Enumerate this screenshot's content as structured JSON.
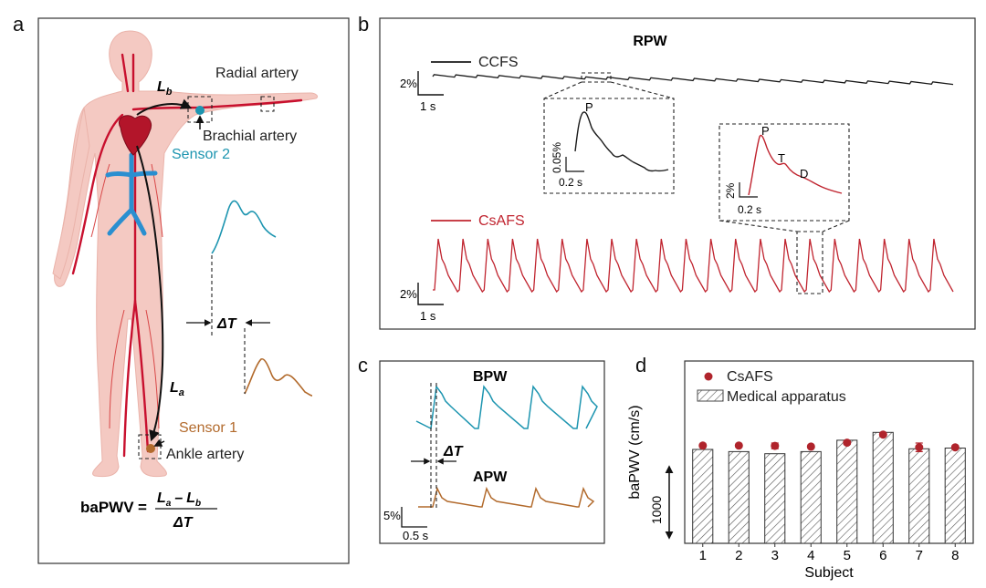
{
  "panels": {
    "a": "a",
    "b": "b",
    "c": "c",
    "d": "d"
  },
  "panel_a": {
    "radial_artery": "Radial artery",
    "brachial_artery": "Brachial artery",
    "sensor2": "Sensor 2",
    "sensor1": "Sensor 1",
    "ankle_artery": "Ankle artery",
    "lb_main": "L",
    "lb_sub": "b",
    "la_main": "L",
    "la_sub": "a",
    "delta_t": "ΔT",
    "formula_lhs": "baPWV",
    "formula_eq": "=",
    "formula_num_la": "L",
    "formula_num_la_sub": "a",
    "formula_minus": "–",
    "formula_num_lb": "L",
    "formula_num_lb_sub": "b",
    "formula_den": "ΔT",
    "colors": {
      "sensor2": "#1d95b0",
      "sensor1": "#b26a2c",
      "artery": "#c8102e",
      "vein": "#2a8fd0",
      "skin": "#f4c9c2"
    }
  },
  "panel_b": {
    "title": "RPW",
    "ccfs_legend": "CCFS",
    "csafs_legend": "CsAFS",
    "scale_top_y": "2%",
    "scale_top_x": "1 s",
    "inset1_y": "0.05%",
    "inset1_x": "0.2 s",
    "inset1_peak": "P",
    "inset2_y": "2%",
    "inset2_x": "0.2 s",
    "inset2_p": "P",
    "inset2_t": "T",
    "inset2_d": "D",
    "scale_bottom_y": "2%",
    "scale_bottom_x": "1 s",
    "colors": {
      "ccfs": "#1a1a1a",
      "csafs": "#c0242f"
    }
  },
  "panel_c": {
    "bpw": "BPW",
    "apw": "APW",
    "delta_t": "ΔT",
    "scale_y": "5%",
    "scale_x": "0.5 s",
    "colors": {
      "bpw": "#1d95b0",
      "apw": "#b26a2c"
    }
  },
  "chart_data": {
    "type": "bar",
    "categories": [
      "1",
      "2",
      "3",
      "4",
      "5",
      "6",
      "7",
      "8"
    ],
    "series": [
      {
        "name": "Medical apparatus",
        "type": "bar",
        "values": [
          1320,
          1290,
          1260,
          1290,
          1450,
          1560,
          1330,
          1340
        ]
      },
      {
        "name": "CsAFS",
        "type": "scatter",
        "values": [
          1375,
          1375,
          1370,
          1360,
          1415,
          1530,
          1350,
          1350
        ],
        "error": [
          20,
          20,
          40,
          20,
          20,
          20,
          60,
          20
        ]
      }
    ],
    "xlabel": "Subject",
    "ylabel": "baPWV (cm/s)",
    "scale_bar_label": "1000",
    "colors": {
      "csafs": "#b0242c",
      "bar_hatch": "#444444"
    }
  }
}
